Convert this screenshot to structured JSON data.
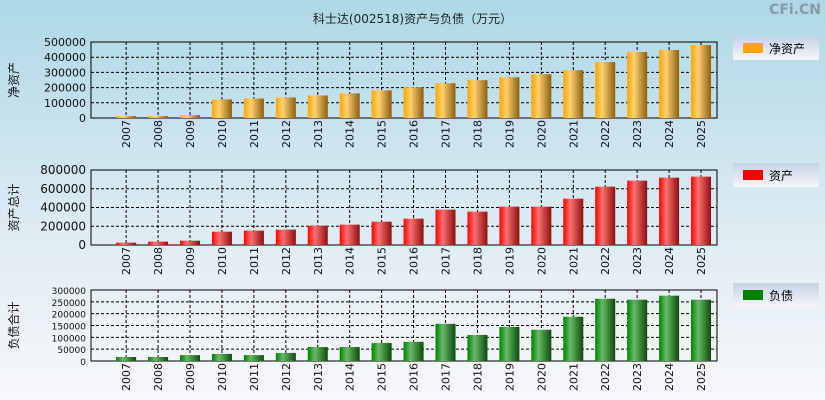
{
  "title": "科士达(002518)资产与负债（万元）",
  "watermark": "CFi.CN",
  "chart_data": [
    {
      "type": "bar",
      "ylabel": "净资产",
      "legend": "净资产",
      "color": "#ffa500",
      "ylim": [
        0,
        500000
      ],
      "yticks": [
        0,
        100000,
        200000,
        300000,
        400000,
        500000
      ],
      "categories": [
        "2007",
        "2008",
        "2009",
        "2010",
        "2011",
        "2012",
        "2013",
        "2014",
        "2015",
        "2016",
        "2017",
        "2018",
        "2019",
        "2020",
        "2021",
        "2022",
        "2023",
        "2024",
        "2025"
      ],
      "values": [
        13000,
        13000,
        19000,
        122000,
        128000,
        135000,
        148000,
        162000,
        182000,
        202000,
        229000,
        249000,
        268000,
        288000,
        315000,
        368000,
        434000,
        447000,
        480000
      ]
    },
    {
      "type": "bar",
      "ylabel": "资产总计",
      "legend": "资产",
      "color": "#ff0000",
      "ylim": [
        0,
        800000
      ],
      "yticks": [
        0,
        200000,
        400000,
        600000,
        800000
      ],
      "categories": [
        "2007",
        "2008",
        "2009",
        "2010",
        "2011",
        "2012",
        "2013",
        "2014",
        "2015",
        "2016",
        "2017",
        "2018",
        "2019",
        "2020",
        "2021",
        "2022",
        "2023",
        "2024",
        "2025"
      ],
      "values": [
        25000,
        36000,
        46000,
        142000,
        153000,
        164000,
        206000,
        217000,
        249000,
        281000,
        377000,
        356000,
        409000,
        409000,
        494000,
        622000,
        686000,
        718000,
        729000
      ]
    },
    {
      "type": "bar",
      "ylabel": "负债合计",
      "legend": "负债",
      "color": "#008000",
      "ylim": [
        0,
        300000
      ],
      "yticks": [
        0,
        50000,
        100000,
        150000,
        200000,
        250000,
        300000
      ],
      "categories": [
        "2007",
        "2008",
        "2009",
        "2010",
        "2011",
        "2012",
        "2013",
        "2014",
        "2015",
        "2016",
        "2017",
        "2018",
        "2019",
        "2020",
        "2021",
        "2022",
        "2023",
        "2024",
        "2025"
      ],
      "values": [
        17000,
        17000,
        25000,
        30000,
        25000,
        34000,
        59000,
        59000,
        76000,
        81000,
        157000,
        110000,
        144000,
        132000,
        187000,
        263000,
        259000,
        276000,
        259000
      ]
    }
  ]
}
